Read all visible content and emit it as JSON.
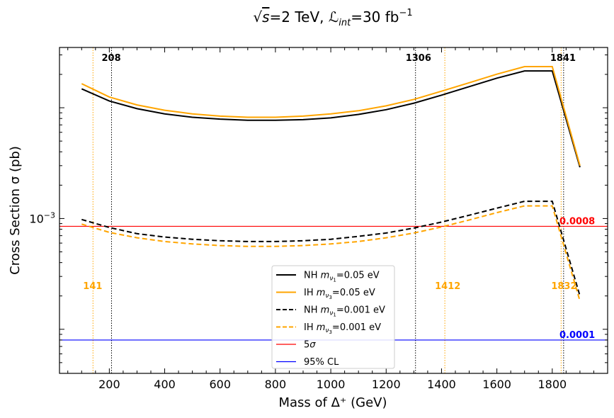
{
  "chart_data": {
    "type": "line",
    "title": {
      "sqrt": "√",
      "s": "s",
      "p1": "=2 TeV, ",
      "L": "ℒ",
      "int": "int",
      "p2": "=30 fb",
      "exp": "−1"
    },
    "xlabel": "Mass of Δ⁺ (GeV)",
    "ylabel": "Cross Section σ (pb)",
    "xlim": [
      20,
      2000
    ],
    "ylim": [
      4e-05,
      0.035
    ],
    "yscale": "log",
    "xticks": [
      200,
      400,
      600,
      800,
      1000,
      1200,
      1400,
      1600,
      1800
    ],
    "ytick_major": {
      "base": "10",
      "exp": "−3",
      "value": 0.001
    },
    "series": [
      {
        "name": "NH",
        "sub": "1",
        "label_value": "=0.05 eV",
        "color": "#000000",
        "dash": "solid",
        "x": [
          100,
          200,
          300,
          400,
          500,
          600,
          700,
          800,
          900,
          1000,
          1100,
          1200,
          1300,
          1400,
          1500,
          1600,
          1700,
          1800,
          1900
        ],
        "values": [
          0.0148,
          0.0115,
          0.0098,
          0.0088,
          0.0082,
          0.0079,
          0.0077,
          0.0077,
          0.0078,
          0.0081,
          0.0087,
          0.0096,
          0.011,
          0.013,
          0.0155,
          0.0185,
          0.0215,
          0.0215,
          0.0029
        ]
      },
      {
        "name": "IH",
        "sub": "3",
        "label_value": "=0.05 eV",
        "color": "#FFA500",
        "dash": "solid",
        "x": [
          100,
          200,
          300,
          400,
          500,
          600,
          700,
          800,
          900,
          1000,
          1100,
          1200,
          1300,
          1400,
          1500,
          1600,
          1700,
          1800,
          1900
        ],
        "values": [
          0.0165,
          0.0125,
          0.0106,
          0.0095,
          0.0088,
          0.0084,
          0.0082,
          0.0082,
          0.0084,
          0.0088,
          0.0094,
          0.0104,
          0.0119,
          0.0141,
          0.0168,
          0.0201,
          0.0235,
          0.0235,
          0.003
        ]
      },
      {
        "name": "NH",
        "sub": "1",
        "label_value": "=0.001 eV",
        "color": "#000000",
        "dash": "dashed",
        "x": [
          100,
          200,
          300,
          400,
          500,
          600,
          700,
          800,
          900,
          1000,
          1100,
          1200,
          1300,
          1400,
          1500,
          1600,
          1700,
          1800,
          1900
        ],
        "values": [
          0.00098,
          0.00083,
          0.00073,
          0.00068,
          0.00065,
          0.00063,
          0.00062,
          0.00062,
          0.00063,
          0.00065,
          0.00069,
          0.00074,
          0.00082,
          0.00093,
          0.00107,
          0.00124,
          0.00143,
          0.00143,
          0.0002
        ]
      },
      {
        "name": "IH",
        "sub": "3",
        "label_value": "=0.001 eV",
        "color": "#FFA500",
        "dash": "dashed",
        "x": [
          100,
          200,
          300,
          400,
          500,
          600,
          700,
          800,
          900,
          1000,
          1100,
          1200,
          1300,
          1400,
          1500,
          1600,
          1700,
          1800,
          1900
        ],
        "values": [
          0.00089,
          0.00075,
          0.00067,
          0.00062,
          0.00059,
          0.00057,
          0.00056,
          0.00056,
          0.00057,
          0.00059,
          0.00062,
          0.00067,
          0.00074,
          0.00084,
          0.00097,
          0.00113,
          0.0013,
          0.0013,
          0.00018
        ]
      }
    ],
    "hlines": [
      {
        "legend": "5σ",
        "value": 0.00085,
        "label": "0.0008",
        "color": "#FF0000"
      },
      {
        "legend": "95% CL",
        "value": 8e-05,
        "label": "0.0001",
        "color": "#0000FF"
      }
    ],
    "vlines": [
      {
        "x": 208,
        "label": "208",
        "color": "#000000",
        "label_pos": "top"
      },
      {
        "x": 1306,
        "label": "1306",
        "color": "#000000",
        "label_pos": "top"
      },
      {
        "x": 1841,
        "label": "1841",
        "color": "#000000",
        "label_pos": "top"
      },
      {
        "x": 141,
        "label": "141",
        "color": "#FFA500",
        "label_pos": "middle"
      },
      {
        "x": 1412,
        "label": "1412",
        "color": "#FFA500",
        "label_pos": "middle"
      },
      {
        "x": 1832,
        "label": "1832",
        "color": "#FFA500",
        "label_pos": "middle"
      }
    ],
    "grid": false,
    "legend_position": "lower-center"
  }
}
